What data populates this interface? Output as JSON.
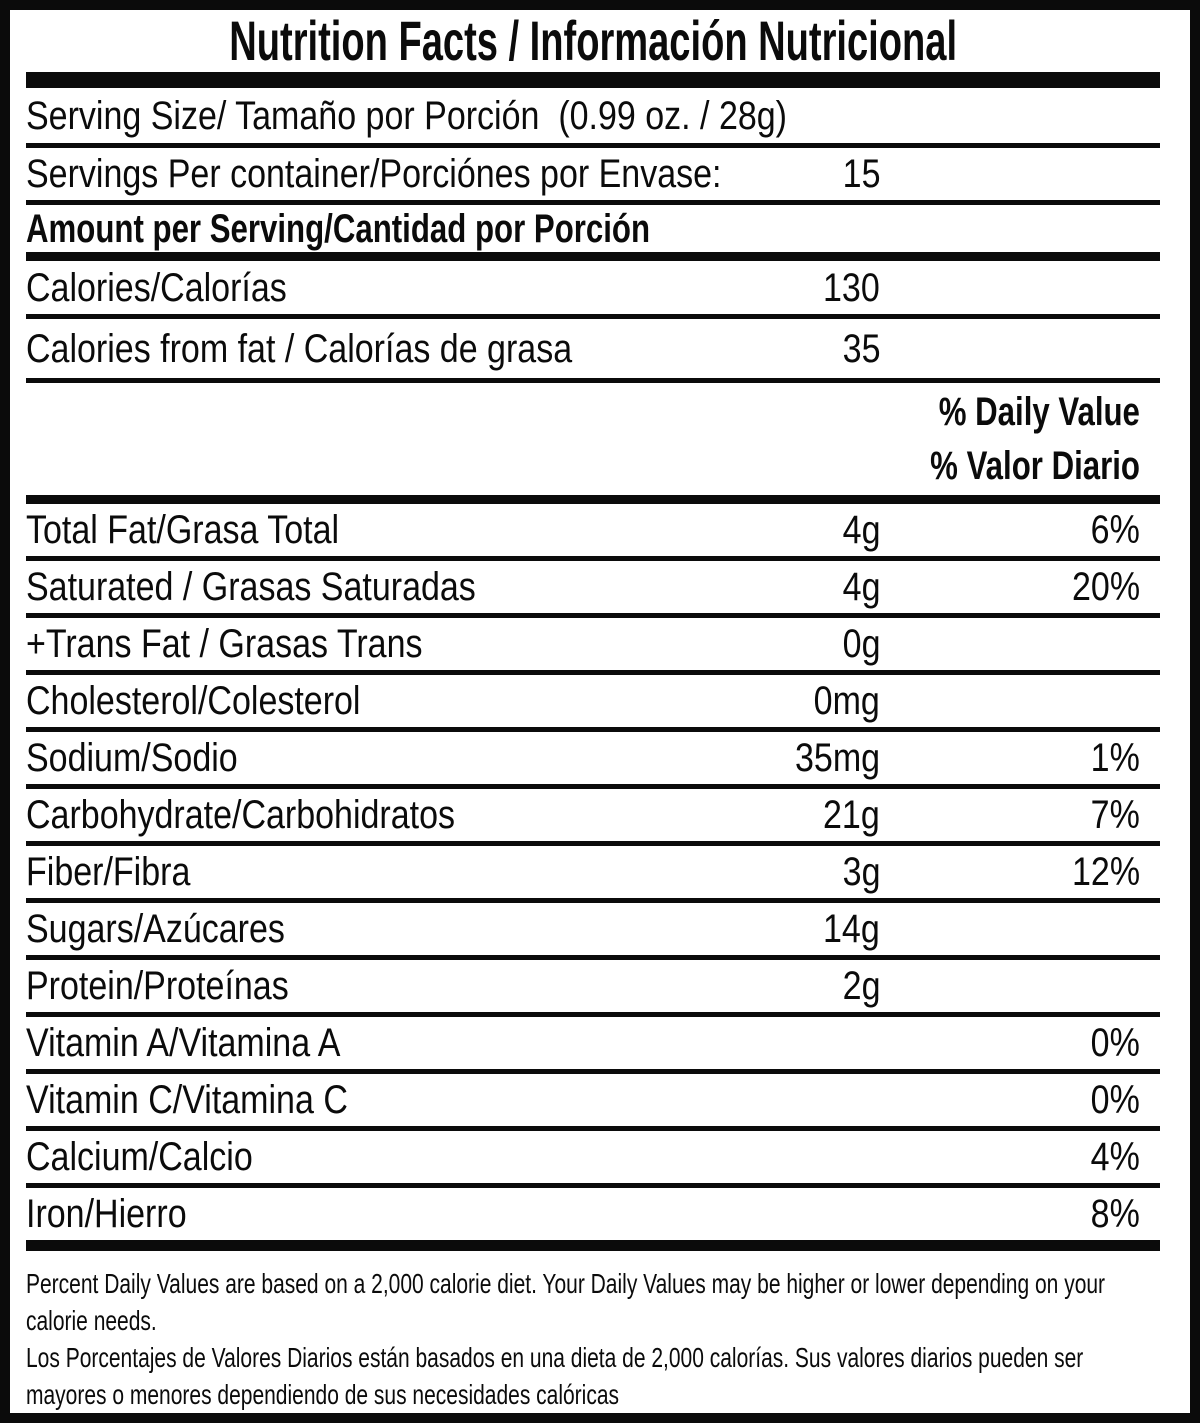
{
  "title": "Nutrition Facts / Información Nutricional",
  "serving_size": {
    "label": "Serving Size/ Tamaño por Porción  (0.99 oz. / 28g)"
  },
  "servings_per_container": {
    "label": "Servings Per container/Porciónes por Envase:",
    "value": "15"
  },
  "amount_per_serving_label": "Amount per Serving/Cantidad por Porción",
  "calories": {
    "label": "Calories/Calorías",
    "value": "130"
  },
  "calories_from_fat": {
    "label": "Calories from fat / Calorías de grasa",
    "value": "35"
  },
  "daily_value_header": {
    "line1": "% Daily Value",
    "line2": "% Valor Diario"
  },
  "nutrients": [
    {
      "label": "Total Fat/Grasa Total",
      "amount": "4g",
      "dv": "6%"
    },
    {
      "label": "Saturated / Grasas Saturadas",
      "amount": "4g",
      "dv": "20%"
    },
    {
      "label": "+Trans Fat / Grasas Trans",
      "amount": "0g",
      "dv": ""
    },
    {
      "label": "Cholesterol/Colesterol",
      "amount": "0mg",
      "dv": ""
    },
    {
      "label": "Sodium/Sodio",
      "amount": "35mg",
      "dv": "1%"
    },
    {
      "label": "Carbohydrate/Carbohidratos",
      "amount": "21g",
      "dv": "7%"
    },
    {
      "label": "Fiber/Fibra",
      "amount": "3g",
      "dv": "12%"
    },
    {
      "label": "Sugars/Azúcares",
      "amount": "14g",
      "dv": ""
    },
    {
      "label": "Protein/Proteínas",
      "amount": "2g",
      "dv": ""
    },
    {
      "label": "Vitamin A/Vitamina A",
      "amount": "",
      "dv": "0%"
    },
    {
      "label": "Vitamin C/Vitamina C",
      "amount": "",
      "dv": "0%"
    },
    {
      "label": "Calcium/Calcio",
      "amount": "",
      "dv": "4%"
    },
    {
      "label": "Iron/Hierro",
      "amount": "",
      "dv": "8%"
    }
  ],
  "footnote": {
    "lines": [
      "Percent Daily Values are based on a 2,000 calorie diet. Your Daily Values may be higher or lower depending on your",
      "calorie needs.",
      "Los Porcentajes de Valores Diarios están basados en una dieta de 2,000 calorías. Sus valores diarios pueden ser",
      "mayores o menores dependiendo de sus necesidades calóricas"
    ]
  },
  "colors": {
    "ink": "#0b0b0b",
    "background": "#ffffff"
  }
}
